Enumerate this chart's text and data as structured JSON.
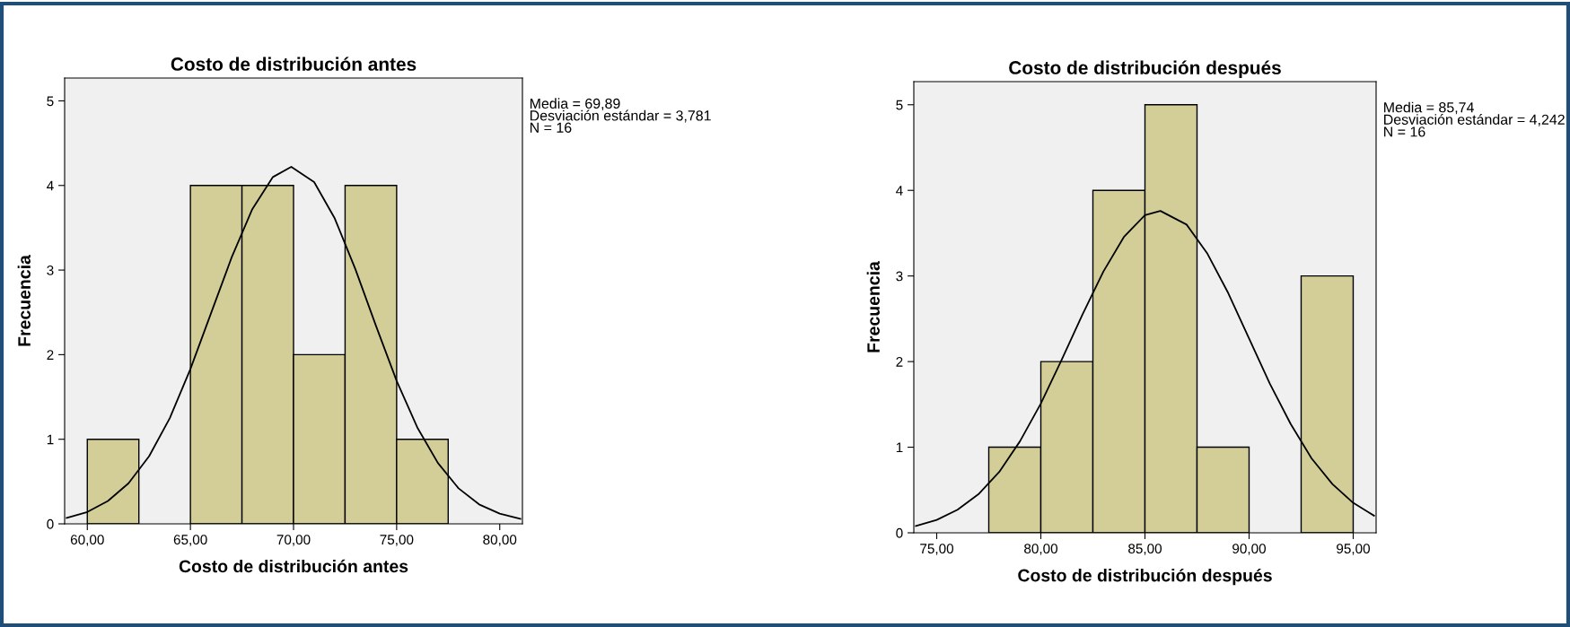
{
  "chart_data": [
    {
      "type": "histogram",
      "title": "Costo de distribución antes",
      "xlabel": "Costo de distribución antes",
      "ylabel": "Frecuencia",
      "bins": [
        60,
        62.5,
        65,
        67.5,
        70,
        72.5,
        75,
        77.5
      ],
      "values": [
        1,
        0,
        4,
        4,
        2,
        4,
        1
      ],
      "color": "#d3ce97",
      "series": [
        {
          "type": "line",
          "color": "#000000",
          "x": [
            59,
            60,
            61,
            62,
            63,
            64,
            65,
            66,
            67,
            68,
            69,
            69.89,
            71,
            72,
            73,
            74,
            75,
            76,
            77,
            78,
            79,
            80,
            81
          ],
          "values": [
            0.07,
            0.14,
            0.27,
            0.48,
            0.8,
            1.25,
            1.83,
            2.49,
            3.15,
            3.72,
            4.1,
            4.22,
            4.04,
            3.61,
            3.01,
            2.34,
            1.69,
            1.14,
            0.72,
            0.42,
            0.23,
            0.12,
            0.06
          ]
        }
      ],
      "xlim": [
        58.9,
        81.1
      ],
      "xticks": [
        {
          "value": 60,
          "label": "60,00"
        },
        {
          "value": 65,
          "label": "65,00"
        },
        {
          "value": 70,
          "label": "70,00"
        },
        {
          "value": 75,
          "label": "75,00"
        },
        {
          "value": 80,
          "label": "80,00"
        }
      ],
      "ylim": [
        0,
        5.27
      ],
      "yticks": [
        0,
        1,
        2,
        3,
        4,
        5
      ],
      "grid": false,
      "annotations": [
        "Media = 69,89",
        "Desviación estándar = 3,781",
        "N = 16"
      ]
    },
    {
      "type": "histogram",
      "title": "Costo de distribución después",
      "xlabel": "Costo de distribución después",
      "ylabel": "Frecuencia",
      "bins": [
        77.5,
        80,
        82.5,
        85,
        87.5,
        90,
        92.5,
        95
      ],
      "values": [
        1,
        2,
        4,
        5,
        1,
        0,
        3
      ],
      "color": "#d3ce97",
      "series": [
        {
          "type": "line",
          "color": "#000000",
          "x": [
            74,
            75,
            76,
            77,
            78,
            79,
            80,
            81,
            82,
            83,
            84,
            85,
            85.74,
            87,
            88,
            89,
            90,
            91,
            92,
            93,
            94,
            95,
            96
          ],
          "values": [
            0.08,
            0.15,
            0.27,
            0.45,
            0.71,
            1.07,
            1.51,
            2.02,
            2.55,
            3.05,
            3.46,
            3.71,
            3.76,
            3.6,
            3.26,
            2.8,
            2.27,
            1.74,
            1.27,
            0.87,
            0.57,
            0.35,
            0.2
          ]
        }
      ],
      "xlim": [
        73.9,
        96.1
      ],
      "xticks": [
        {
          "value": 75,
          "label": "75,00"
        },
        {
          "value": 80,
          "label": "80,00"
        },
        {
          "value": 85,
          "label": "85,00"
        },
        {
          "value": 90,
          "label": "90,00"
        },
        {
          "value": 95,
          "label": "95,00"
        }
      ],
      "ylim": [
        0,
        5.27
      ],
      "yticks": [
        0,
        1,
        2,
        3,
        4,
        5
      ],
      "grid": false,
      "annotations": [
        "Media = 85,74",
        "Desviación estándar = 4,242",
        "N = 16"
      ]
    }
  ]
}
